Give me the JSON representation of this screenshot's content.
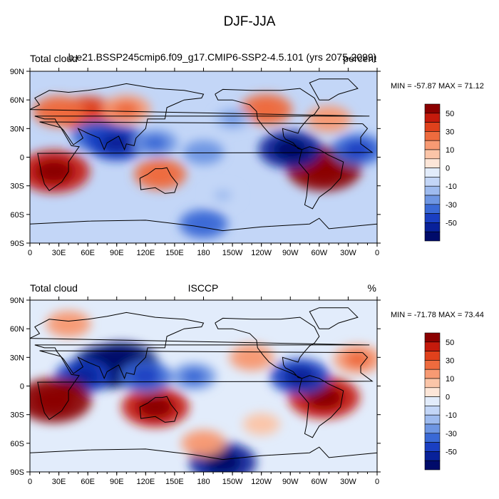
{
  "title": "DJF-JJA",
  "chart_data": [
    {
      "type": "heatmap",
      "left_label": "Total cloud",
      "center_label": "b.e21.BSSP245cmip6.f09_g17.CMIP6-SSP2-4.5.101 (yrs 2075-2099)",
      "right_label": "percent",
      "min_max": "MIN = -57.87 MAX =  71.12",
      "x_ticks": [
        "0",
        "30E",
        "60E",
        "90E",
        "120E",
        "150E",
        "180",
        "150W",
        "120W",
        "90W",
        "60W",
        "30W",
        "0"
      ],
      "y_ticks": [
        "90N",
        "60N",
        "30N",
        "0",
        "30S",
        "60S",
        "90S"
      ],
      "xlim": [
        0,
        360
      ],
      "ylim": [
        -90,
        90
      ],
      "features": [
        {
          "lon": 60,
          "lat": 45,
          "value": 40
        },
        {
          "lon": 30,
          "lat": 48,
          "value": 30
        },
        {
          "lon": 100,
          "lat": 50,
          "value": 25
        },
        {
          "lon": 70,
          "lat": 22,
          "value": -30
        },
        {
          "lon": 90,
          "lat": 15,
          "value": -40
        },
        {
          "lon": 130,
          "lat": 15,
          "value": -20
        },
        {
          "lon": 25,
          "lat": -15,
          "value": 55
        },
        {
          "lon": 135,
          "lat": -18,
          "value": 30
        },
        {
          "lon": 305,
          "lat": -12,
          "value": 60
        },
        {
          "lon": 245,
          "lat": 50,
          "value": 30
        },
        {
          "lon": 310,
          "lat": 40,
          "value": 20
        },
        {
          "lon": 270,
          "lat": 8,
          "value": -45
        },
        {
          "lon": 340,
          "lat": 8,
          "value": -30
        },
        {
          "lon": 180,
          "lat": 5,
          "value": -15
        },
        {
          "lon": 200,
          "lat": -40,
          "value": -5
        },
        {
          "lon": 180,
          "lat": -70,
          "value": -25
        },
        {
          "lon": 210,
          "lat": 40,
          "value": -10
        }
      ]
    },
    {
      "type": "heatmap",
      "left_label": "Total cloud",
      "center_label": "ISCCP",
      "right_label": "%",
      "min_max": "MIN = -71.78 MAX =  73.44",
      "x_ticks": [
        "0",
        "30E",
        "60E",
        "90E",
        "120E",
        "150E",
        "180",
        "150W",
        "120W",
        "90W",
        "60W",
        "30W",
        "0"
      ],
      "y_ticks": [
        "90N",
        "60N",
        "30N",
        "0",
        "30S",
        "60S",
        "90S"
      ],
      "xlim": [
        0,
        360
      ],
      "ylim": [
        -90,
        90
      ],
      "features": [
        {
          "lon": 40,
          "lat": 65,
          "value": 20
        },
        {
          "lon": 80,
          "lat": 20,
          "value": -55
        },
        {
          "lon": 95,
          "lat": 22,
          "value": -60
        },
        {
          "lon": 55,
          "lat": 10,
          "value": -35
        },
        {
          "lon": 25,
          "lat": -15,
          "value": 60
        },
        {
          "lon": 130,
          "lat": -22,
          "value": 50
        },
        {
          "lon": 305,
          "lat": -12,
          "value": 55
        },
        {
          "lon": 230,
          "lat": 30,
          "value": 20
        },
        {
          "lon": 340,
          "lat": 28,
          "value": 25
        },
        {
          "lon": 280,
          "lat": 10,
          "value": -40
        },
        {
          "lon": 170,
          "lat": 10,
          "value": -20
        },
        {
          "lon": 120,
          "lat": 10,
          "value": -30
        },
        {
          "lon": 200,
          "lat": -80,
          "value": -50
        },
        {
          "lon": 180,
          "lat": -60,
          "value": 20
        },
        {
          "lon": 240,
          "lat": -40,
          "value": 10
        }
      ]
    }
  ],
  "colorbar": {
    "levels": [
      "50",
      "30",
      "10",
      "0",
      "-10",
      "-30",
      "-50"
    ],
    "colors": [
      "#8b0000",
      "#c51a0c",
      "#e0411c",
      "#ee6b3e",
      "#f79a73",
      "#fbc5a8",
      "#fde6d8",
      "#e2ecfb",
      "#c3d6f7",
      "#9ebbef",
      "#6e96e3",
      "#3a69d6",
      "#1a3fc2",
      "#08219a",
      "#000b6a"
    ]
  }
}
